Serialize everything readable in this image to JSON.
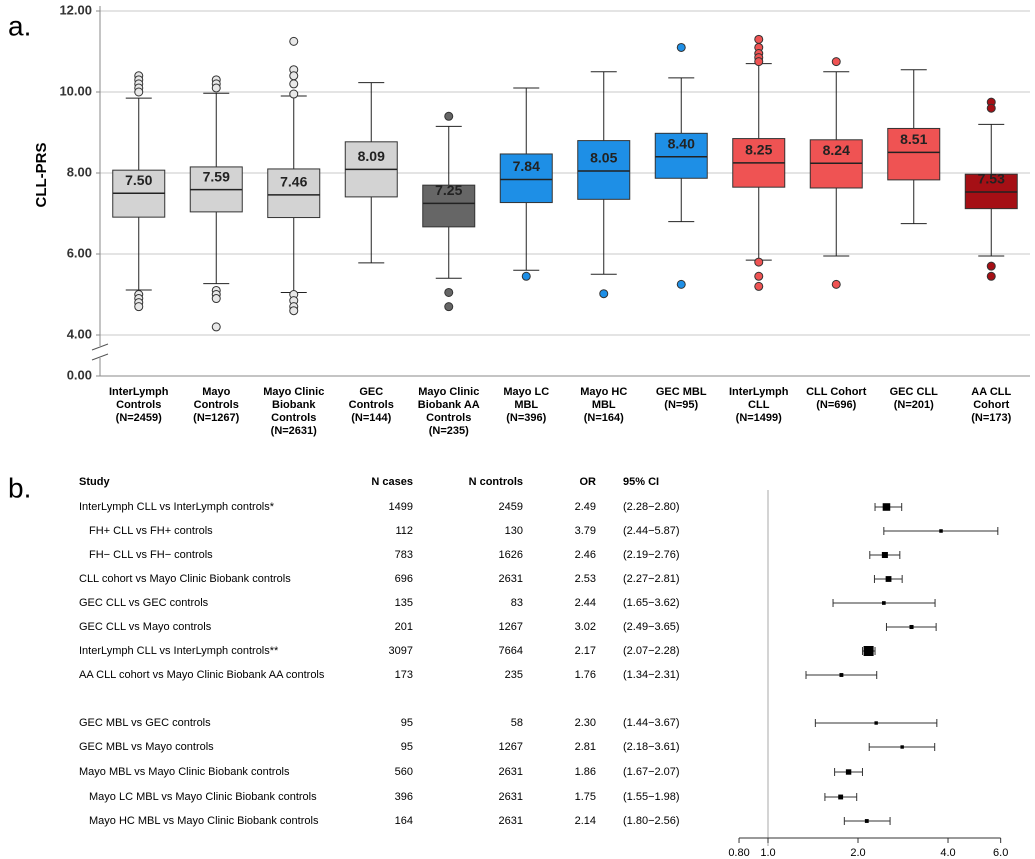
{
  "chart_data": [
    {
      "type": "box",
      "panel_label": "a.",
      "y_label": "CLL-PRS",
      "categories": [
        [
          "InterLymph",
          "Controls",
          "(N=2459)"
        ],
        [
          "Mayo",
          "Controls",
          "(N=1267)"
        ],
        [
          "Mayo Clinic",
          "Biobank",
          "Controls",
          "(N=2631)"
        ],
        [
          "GEC",
          "Controls",
          "(N=144)"
        ],
        [
          "Mayo Clinic",
          "Biobank AA",
          "Controls",
          "(N=235)"
        ],
        [
          "Mayo LC",
          "MBL",
          "(N=396)"
        ],
        [
          "Mayo HC",
          "MBL",
          "(N=164)"
        ],
        [
          "GEC MBL",
          "(N=95)"
        ],
        [
          "InterLymph",
          "CLL",
          "(N=1499)"
        ],
        [
          "CLL Cohort",
          "(N=696)"
        ],
        [
          "GEC CLL",
          "(N=201)"
        ],
        [
          "AA CLL",
          "Cohort",
          "(N=173)"
        ]
      ],
      "values": [
        7.5,
        7.59,
        7.46,
        8.09,
        7.25,
        7.84,
        8.05,
        8.4,
        8.25,
        8.24,
        8.51,
        7.53
      ],
      "value_labels": [
        "7.50",
        "7.59",
        "7.46",
        "8.09",
        "7.25",
        "7.84",
        "8.05",
        "8.40",
        "8.25",
        "8.24",
        "8.51",
        "7.53"
      ],
      "q1": [
        6.91,
        7.04,
        6.9,
        7.41,
        6.67,
        7.27,
        7.35,
        7.87,
        7.65,
        7.63,
        7.83,
        7.12
      ],
      "q3": [
        8.07,
        8.15,
        8.1,
        8.77,
        7.7,
        8.47,
        8.8,
        8.98,
        8.85,
        8.82,
        9.1,
        7.97
      ],
      "whisker_low": [
        5.11,
        5.27,
        5.05,
        5.78,
        5.4,
        5.6,
        5.5,
        6.8,
        5.85,
        5.95,
        6.75,
        5.95
      ],
      "whisker_high": [
        9.85,
        9.97,
        9.9,
        10.23,
        9.15,
        10.1,
        10.5,
        10.35,
        10.7,
        10.5,
        10.55,
        9.2
      ],
      "outliers": [
        [
          10.4,
          10.3,
          10.2,
          10.1,
          10.0,
          5.0,
          4.9,
          4.8,
          4.7
        ],
        [
          10.3,
          10.2,
          10.1,
          5.1,
          5.0,
          4.9,
          4.2
        ],
        [
          11.25,
          10.55,
          10.4,
          10.2,
          9.95,
          5.0,
          4.85,
          4.7,
          4.6
        ],
        [],
        [
          9.4,
          5.05,
          4.7
        ],
        [
          5.45
        ],
        [
          5.02
        ],
        [
          11.1,
          5.25
        ],
        [
          11.3,
          11.1,
          10.95,
          10.85,
          10.75,
          5.8,
          5.45,
          5.2
        ],
        [
          10.75,
          5.25
        ],
        [],
        [
          9.75,
          9.6,
          5.7,
          5.45
        ]
      ],
      "colors": [
        "#d3d3d3",
        "#d3d3d3",
        "#d3d3d3",
        "#d3d3d3",
        "#666666",
        "#1e8fe6",
        "#1e8fe6",
        "#1e8fe6",
        "#ef5353",
        "#ef5353",
        "#ef5353",
        "#a50f15"
      ],
      "ylim": [
        0,
        12
      ],
      "yticks": [
        {
          "value": 0,
          "label": "0.00"
        },
        {
          "value": 4,
          "label": "4.00"
        },
        {
          "value": 6,
          "label": "6.00"
        },
        {
          "value": 8,
          "label": "8.00"
        },
        {
          "value": 10,
          "label": "10.00"
        },
        {
          "value": 12,
          "label": "12.00"
        }
      ],
      "grid": true
    },
    {
      "type": "forest",
      "panel_label": "b.",
      "headers": [
        "Study",
        "N cases",
        "N controls",
        "OR",
        "95% CI"
      ],
      "studies": [
        "InterLymph CLL vs InterLymph controls*",
        "FH+ CLL vs FH+ controls",
        "FH− CLL vs FH− controls",
        "CLL cohort vs Mayo Clinic Biobank controls",
        "GEC CLL vs GEC controls",
        "GEC CLL vs Mayo controls",
        "InterLymph CLL vs InterLymph controls**",
        "AA CLL cohort vs Mayo Clinic Biobank AA controls",
        "GEC MBL vs GEC controls",
        "GEC MBL vs Mayo controls",
        "Mayo MBL vs Mayo Clinic Biobank controls",
        "Mayo LC MBL vs Mayo Clinic Biobank controls",
        "Mayo HC MBL vs Mayo Clinic Biobank controls"
      ],
      "n_cases": [
        1499,
        112,
        783,
        696,
        135,
        201,
        3097,
        173,
        95,
        95,
        560,
        396,
        164
      ],
      "n_controls": [
        2459,
        130,
        1626,
        2631,
        83,
        1267,
        7664,
        235,
        58,
        1267,
        2631,
        2631,
        2631
      ],
      "values": [
        2.49,
        3.79,
        2.46,
        2.53,
        2.44,
        3.02,
        2.17,
        1.76,
        2.3,
        2.81,
        1.86,
        1.75,
        2.14
      ],
      "value_labels": [
        "2.49",
        "3.79",
        "2.46",
        "2.53",
        "2.44",
        "3.02",
        "2.17",
        "1.76",
        "2.30",
        "2.81",
        "1.86",
        "1.75",
        "2.14"
      ],
      "ci_low": [
        2.28,
        2.44,
        2.19,
        2.27,
        1.65,
        2.49,
        2.07,
        1.34,
        1.44,
        2.18,
        1.67,
        1.55,
        1.8
      ],
      "ci_high": [
        2.8,
        5.87,
        2.76,
        2.81,
        3.62,
        3.65,
        2.28,
        2.31,
        3.67,
        3.61,
        2.07,
        1.98,
        2.56
      ],
      "ci_labels": [
        "(2.28−2.80)",
        "(2.44−5.87)",
        "(2.19−2.76)",
        "(2.27−2.81)",
        "(1.65−3.62)",
        "(2.49−3.65)",
        "(2.07−2.28)",
        "(1.34−2.31)",
        "(1.44−3.67)",
        "(2.18−3.61)",
        "(1.67−2.07)",
        "(1.55−1.98)",
        "(1.80−2.56)"
      ],
      "log_x": true,
      "reference": 1,
      "xlim": [
        0.8,
        6
      ],
      "xticks": [
        {
          "value": 0.8,
          "label": "0.80"
        },
        {
          "value": 1,
          "label": "1.0"
        },
        {
          "value": 2,
          "label": "2.0"
        },
        {
          "value": 4,
          "label": "4.0"
        },
        {
          "value": 6,
          "label": "6.0"
        }
      ]
    }
  ]
}
